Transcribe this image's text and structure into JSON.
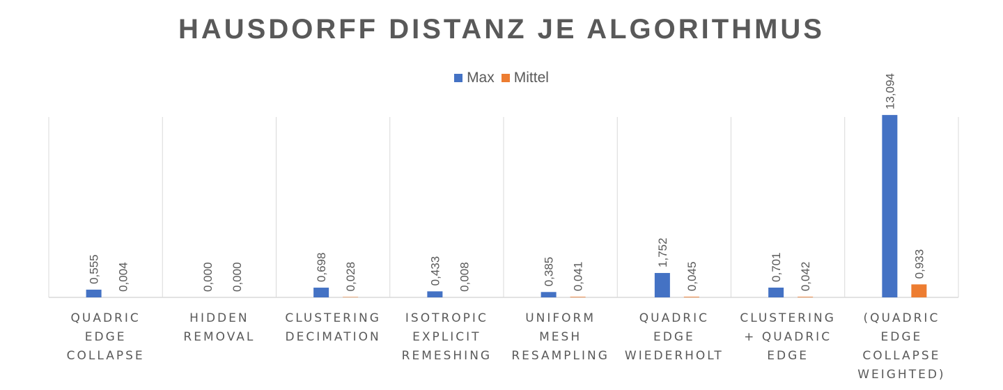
{
  "chart_data": {
    "type": "bar",
    "title": "HAUSDORFF DISTANZ JE ALGORITHMUS",
    "categories": [
      "QUADRIC EDGE COLLAPSE",
      "HIDDEN REMOVAL",
      "CLUSTERING DECIMATION",
      "ISOTROPIC EXPLICIT REMESHING",
      "UNIFORM MESH RESAMPLING",
      "QUADRIC EDGE WIEDERHOLT",
      "CLUSTERING + QUADRIC EDGE",
      "(QUADRIC EDGE COLLAPSE WEIGHTED)"
    ],
    "category_lines": [
      [
        "QUADRIC",
        "EDGE",
        "COLLAPSE"
      ],
      [
        "HIDDEN",
        "REMOVAL"
      ],
      [
        "CLUSTERING",
        "DECIMATION"
      ],
      [
        "ISOTROPIC",
        "EXPLICIT",
        "REMESHING"
      ],
      [
        "UNIFORM",
        "MESH",
        "RESAMPLING"
      ],
      [
        "QUADRIC",
        "EDGE",
        "WIEDERHOLT"
      ],
      [
        "CLUSTERING",
        "+ QUADRIC",
        "EDGE"
      ],
      [
        "(QUADRIC",
        "EDGE",
        "COLLAPSE",
        "WEIGHTED)"
      ]
    ],
    "series": [
      {
        "name": "Max",
        "color": "#4472C4",
        "values": [
          0.555,
          0.0,
          0.698,
          0.433,
          0.385,
          1.752,
          0.701,
          13.094
        ],
        "labels": [
          "0,555",
          "0,000",
          "0,698",
          "0,433",
          "0,385",
          "1,752",
          "0,701",
          "13,094"
        ]
      },
      {
        "name": "Mittel",
        "color": "#ED7D31",
        "values": [
          0.004,
          0.0,
          0.028,
          0.008,
          0.041,
          0.045,
          0.042,
          0.933
        ],
        "labels": [
          "0,004",
          "0,000",
          "0,028",
          "0,008",
          "0,041",
          "0,045",
          "0,042",
          "0,933"
        ]
      }
    ],
    "ylim": [
      0,
      14
    ],
    "grid": false,
    "legend_position": "top"
  }
}
